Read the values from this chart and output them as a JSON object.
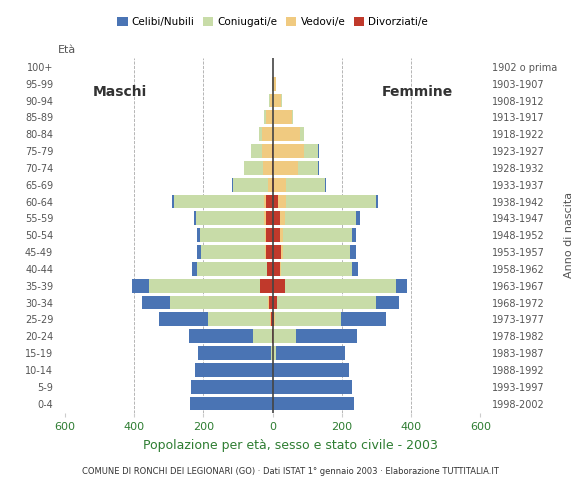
{
  "title": "Popolazione per età, sesso e stato civile - 2003",
  "subtitle": "COMUNE DI RONCHI DEI LEGIONARI (GO) · Dati ISTAT 1° gennaio 2003 · Elaborazione TUTTITALIA.IT",
  "age_groups": [
    "0-4",
    "5-9",
    "10-14",
    "15-19",
    "20-24",
    "25-29",
    "30-34",
    "35-39",
    "40-44",
    "45-49",
    "50-54",
    "55-59",
    "60-64",
    "65-69",
    "70-74",
    "75-79",
    "80-84",
    "85-89",
    "90-94",
    "95-99",
    "100+"
  ],
  "birth_years": [
    "1998-2002",
    "1993-1997",
    "1988-1992",
    "1983-1987",
    "1978-1982",
    "1973-1977",
    "1968-1972",
    "1963-1967",
    "1958-1962",
    "1953-1957",
    "1948-1952",
    "1943-1947",
    "1938-1942",
    "1933-1937",
    "1928-1932",
    "1923-1927",
    "1918-1922",
    "1913-1917",
    "1908-1912",
    "1903-1907",
    "1902 o prima"
  ],
  "colors": {
    "celibi": "#4a74b4",
    "coniugati": "#c8dca8",
    "vedovi": "#f0ca80",
    "divorziati": "#c0392b"
  },
  "males": {
    "celibi": [
      240,
      235,
      225,
      210,
      185,
      140,
      80,
      50,
      15,
      10,
      8,
      8,
      5,
      3,
      2,
      0,
      0,
      0,
      0,
      0,
      0
    ],
    "coniugati": [
      0,
      0,
      0,
      5,
      55,
      180,
      285,
      320,
      200,
      185,
      190,
      195,
      260,
      100,
      55,
      30,
      10,
      5,
      2,
      0,
      0
    ],
    "vedovi": [
      0,
      0,
      0,
      0,
      0,
      2,
      2,
      2,
      2,
      2,
      3,
      5,
      8,
      10,
      25,
      30,
      30,
      20,
      8,
      2,
      0
    ],
    "divorziati": [
      0,
      0,
      0,
      0,
      2,
      5,
      10,
      35,
      15,
      20,
      18,
      20,
      18,
      3,
      2,
      1,
      0,
      0,
      0,
      0,
      0
    ]
  },
  "females": {
    "nubili": [
      235,
      230,
      220,
      200,
      175,
      130,
      65,
      30,
      20,
      15,
      12,
      10,
      5,
      5,
      3,
      2,
      0,
      0,
      0,
      0,
      0
    ],
    "coniugate": [
      0,
      0,
      0,
      10,
      65,
      190,
      285,
      320,
      205,
      195,
      200,
      205,
      260,
      110,
      60,
      40,
      12,
      5,
      2,
      0,
      0
    ],
    "vedove": [
      0,
      0,
      0,
      0,
      1,
      2,
      2,
      2,
      3,
      5,
      10,
      15,
      25,
      35,
      70,
      90,
      80,
      55,
      25,
      10,
      2
    ],
    "divorziate": [
      0,
      0,
      0,
      0,
      2,
      5,
      12,
      35,
      20,
      25,
      20,
      22,
      15,
      5,
      2,
      1,
      0,
      0,
      0,
      0,
      0
    ]
  },
  "xlim": 620,
  "grid_color": "#aaaaaa",
  "bg_color": "#ffffff",
  "bar_height": 0.82,
  "label_color": "#2e7d32",
  "text_color": "#555555"
}
